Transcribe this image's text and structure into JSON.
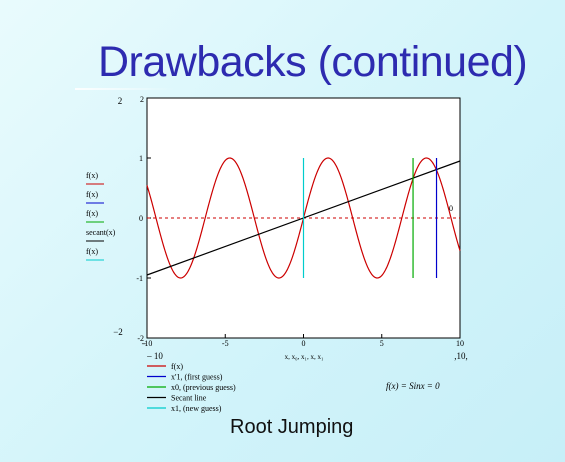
{
  "slide": {
    "title": "Drawbacks (continued)",
    "caption": "Root Jumping"
  },
  "chart_data": {
    "type": "line",
    "xlim": [
      -10,
      10
    ],
    "ylim": [
      -2,
      2
    ],
    "x_ticks": [
      -10,
      -5,
      0,
      5,
      10
    ],
    "y_ticks": [
      -1,
      0,
      1
    ],
    "outer_y_labels": [
      "2",
      "−2"
    ],
    "outer_x_labels": [
      "– 10",
      ",10,"
    ],
    "xlabel": "x, x₀, x₁, x, x₁",
    "ylabel_entries": [
      "f(x)",
      "f(x)",
      "f(x)",
      "secant(x)",
      "f(x)"
    ],
    "ylabel_colors": [
      "#cc0000",
      "#0000cc",
      "#00aa00",
      "#000000",
      "#00cccc"
    ],
    "legend": [
      "f(x)",
      "x'1, (first guess)",
      "x0, (previous guess)",
      "Secant line",
      "x1, (new guess)"
    ],
    "legend_colors": [
      "#cc0000",
      "#0000cc",
      "#00aa00",
      "#000000",
      "#00cccc"
    ],
    "equation": "f(x) = Sinx = 0",
    "annotation": "0",
    "series": [
      {
        "name": "f(x)",
        "function": "sin",
        "color": "#cc0000"
      },
      {
        "name": "Secant line",
        "x": [
          -10,
          10
        ],
        "y": [
          -0.95,
          0.95
        ],
        "color": "#000000"
      }
    ],
    "zero_line": {
      "y": 0,
      "color": "#cc0000",
      "dashed": true
    },
    "vertical_lines": [
      {
        "name": "x1, (new guess)",
        "x": 0,
        "y": [
          -1,
          1
        ],
        "color": "#00cccc"
      },
      {
        "name": "x0, (previous guess)",
        "x": 7,
        "y": [
          -1,
          1
        ],
        "color": "#00aa00"
      },
      {
        "name": "x'1, (first guess)",
        "x": 8.5,
        "y": [
          -1,
          1
        ],
        "color": "#0000cc"
      }
    ]
  }
}
